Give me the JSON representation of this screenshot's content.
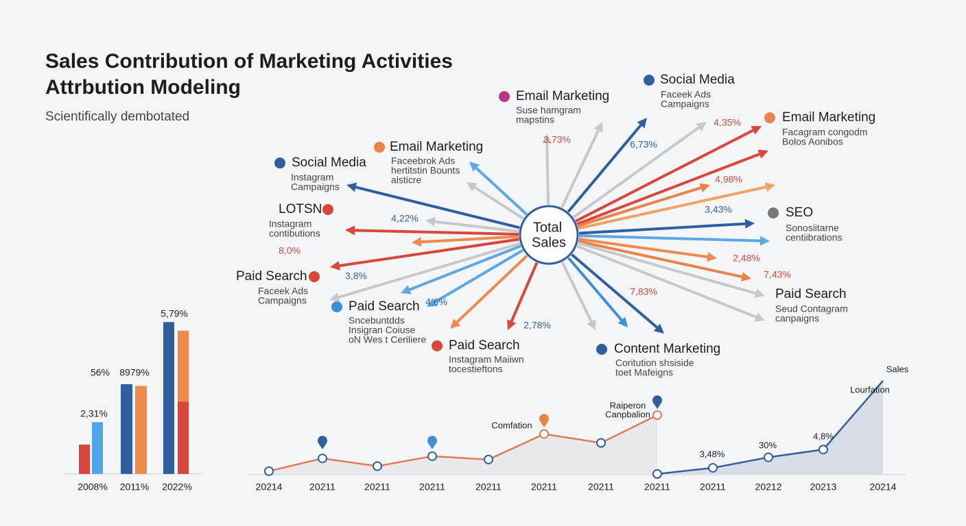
{
  "header": {
    "title": [
      "Sales Contribution of Marketing Activities",
      "Attrbution Modeling"
    ],
    "subtitle": "Scientifically dembotated"
  },
  "hub": [
    "Total",
    "Sales"
  ],
  "nodes": [
    {
      "label": "Email Marketing",
      "lines": [
        "Suse hamgram",
        "mapstins"
      ]
    },
    {
      "label": "Social Media",
      "lines": [
        "Faceek Ads",
        "Campaigns"
      ]
    },
    {
      "label": "Email Marketing",
      "lines": [
        "Facagram congodm",
        "Bolos Aonibos"
      ]
    },
    {
      "label": "Email Marketing",
      "lines": [
        "Faceebrok Ads",
        "hertitstin Bounts",
        "alsticre"
      ]
    },
    {
      "label": "Social Media",
      "lines": [
        "Instagram",
        "Campaigns"
      ]
    },
    {
      "label": "LOTSN",
      "lines": [
        "Instagram",
        "contibutions"
      ]
    },
    {
      "label": "SEO",
      "lines": [
        "Sonosiitarne",
        "centiibrations"
      ]
    },
    {
      "label": "Paid Search",
      "lines": [
        "Faceek Ads",
        "Campaigns"
      ]
    },
    {
      "label": "Paid Search",
      "lines": [
        "Seud Contagram",
        "canpaigns"
      ]
    },
    {
      "label": "Paid Search",
      "lines": [
        "Sncebuntdds",
        "Insigran Coiuse",
        "oN Wes t Ceriliere"
      ]
    },
    {
      "label": "Paid Search",
      "lines": [
        "Instagram Maiiwn",
        "tocestieftons"
      ]
    },
    {
      "label": "Content Marketing",
      "lines": [
        "Coritution shsiside",
        "toet Mafeigns"
      ]
    }
  ],
  "arrow_labels": [
    "3,73%",
    "6,73%",
    "4,35%",
    "4,98%",
    "3,43%",
    "2,48%",
    "7,43%",
    "7,83%",
    "2,78%",
    "4,6%",
    "3,8%",
    "8,0%",
    "4,22%"
  ],
  "bar_chart": {
    "type": "bar",
    "categories": [
      "2008%",
      "2011%",
      "2022%"
    ],
    "ylim": [
      0,
      100
    ],
    "groups": [
      {
        "bars": [
          {
            "segments": [
              {
                "color": "#d9473b",
                "value": 17
              }
            ]
          },
          {
            "segments": [
              {
                "color": "#4ea6e6",
                "value": 30
              }
            ]
          }
        ]
      },
      {
        "bars": [
          {
            "segments": [
              {
                "color": "#2f5f9e",
                "value": 52
              }
            ]
          },
          {
            "segments": [
              {
                "color": "#f08a4b",
                "value": 51
              }
            ]
          }
        ]
      },
      {
        "bars": [
          {
            "segments": [
              {
                "color": "#2f5f9e",
                "value": 88
              }
            ]
          },
          {
            "segments": [
              {
                "color": "#d9473b",
                "value": 42
              },
              {
                "color": "#f08a4b",
                "value": 41
              }
            ]
          }
        ]
      }
    ],
    "value_labels": [
      "56%",
      "2,31%",
      "8979%",
      "5,79%"
    ]
  },
  "line_chart": {
    "type": "line",
    "categories": [
      "20214",
      "20211",
      "20211",
      "20211",
      "20211",
      "20211",
      "20211",
      "20211",
      "20211",
      "20212",
      "20213",
      "20214"
    ],
    "ylim": [
      0,
      100
    ],
    "series": [
      {
        "color": "#e07a55",
        "values": [
          2.5,
          14,
          7,
          16,
          13,
          36,
          28,
          53,
          null,
          null,
          null,
          null
        ]
      },
      {
        "color": "#2f5f9e",
        "values": [
          null,
          null,
          null,
          null,
          null,
          null,
          null,
          0,
          5.5,
          15,
          22,
          84
        ]
      }
    ],
    "annotations": [
      "Comfation",
      "Raiperon",
      "Canpbalion",
      "Sales",
      "Lourfation",
      "3,48%",
      "30%",
      "4,8%"
    ]
  }
}
